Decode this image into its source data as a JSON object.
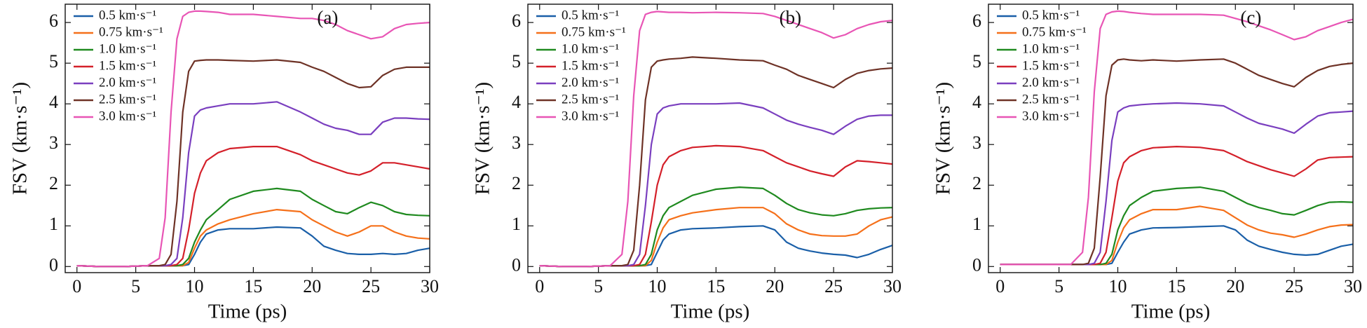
{
  "chart_data": [
    {
      "type": "line",
      "annotation": "(a)",
      "xlabel": "Time (ps)",
      "ylabel": "FSV (km·s⁻¹)",
      "xlim": [
        -1,
        30
      ],
      "ylim": [
        -0.15,
        6.45
      ],
      "xticks": [
        0,
        5,
        10,
        15,
        20,
        25,
        30
      ],
      "yticks": [
        0,
        1,
        2,
        3,
        4,
        5,
        6
      ],
      "x": [
        0,
        2,
        4,
        6,
        7,
        7.5,
        8,
        8.5,
        9,
        9.5,
        10,
        10.5,
        11,
        12,
        13,
        15,
        17,
        19,
        20,
        21,
        22,
        23,
        24,
        25,
        26,
        27,
        28,
        29,
        30
      ],
      "series": [
        {
          "name": "0.5 km·s⁻¹",
          "color": "#1a5fa8",
          "values": [
            0.02,
            0,
            0,
            0.02,
            0.02,
            0.02,
            0.02,
            0.02,
            0.02,
            0.05,
            0.3,
            0.6,
            0.8,
            0.9,
            0.93,
            0.93,
            0.97,
            0.95,
            0.75,
            0.5,
            0.4,
            0.32,
            0.3,
            0.3,
            0.32,
            0.3,
            0.32,
            0.4,
            0.45
          ]
        },
        {
          "name": "0.75 km·s⁻¹",
          "color": "#f5701a",
          "values": [
            0.02,
            0,
            0,
            0.02,
            0.02,
            0.02,
            0.02,
            0.02,
            0.02,
            0.1,
            0.45,
            0.75,
            0.9,
            1.05,
            1.15,
            1.3,
            1.4,
            1.35,
            1.15,
            1.0,
            0.85,
            0.75,
            0.85,
            1.0,
            1.0,
            0.85,
            0.75,
            0.7,
            0.68
          ]
        },
        {
          "name": "1.0 km·s⁻¹",
          "color": "#1f8a1f",
          "values": [
            0.02,
            0,
            0,
            0.02,
            0.02,
            0.02,
            0.02,
            0.02,
            0.05,
            0.2,
            0.6,
            0.9,
            1.15,
            1.4,
            1.65,
            1.85,
            1.92,
            1.85,
            1.65,
            1.5,
            1.35,
            1.3,
            1.45,
            1.58,
            1.5,
            1.35,
            1.28,
            1.26,
            1.25
          ]
        },
        {
          "name": "1.5 km·s⁻¹",
          "color": "#d4202a",
          "values": [
            0.02,
            0,
            0,
            0.02,
            0.02,
            0.02,
            0.02,
            0.05,
            0.2,
            0.9,
            1.8,
            2.3,
            2.6,
            2.8,
            2.9,
            2.95,
            2.95,
            2.75,
            2.6,
            2.5,
            2.4,
            2.3,
            2.25,
            2.35,
            2.55,
            2.55,
            2.5,
            2.45,
            2.4
          ]
        },
        {
          "name": "2.0 km·s⁻¹",
          "color": "#7a3fbf",
          "values": [
            0.02,
            0,
            0,
            0.02,
            0.02,
            0.02,
            0.05,
            0.2,
            1.2,
            2.8,
            3.7,
            3.85,
            3.9,
            3.95,
            4.0,
            4.0,
            4.05,
            3.8,
            3.65,
            3.5,
            3.4,
            3.35,
            3.25,
            3.25,
            3.55,
            3.65,
            3.65,
            3.63,
            3.62
          ]
        },
        {
          "name": "2.5 km·s⁻¹",
          "color": "#6e3226",
          "values": [
            0.02,
            0,
            0,
            0.02,
            0.02,
            0.05,
            0.3,
            1.6,
            3.8,
            4.8,
            5.05,
            5.07,
            5.08,
            5.08,
            5.07,
            5.05,
            5.08,
            5.02,
            4.9,
            4.8,
            4.65,
            4.5,
            4.4,
            4.42,
            4.7,
            4.85,
            4.9,
            4.9,
            4.9
          ]
        },
        {
          "name": "3.0 km·s⁻¹",
          "color": "#e855b5",
          "values": [
            0.02,
            0,
            0,
            0.02,
            0.2,
            1.2,
            3.8,
            5.6,
            6.15,
            6.25,
            6.28,
            6.28,
            6.27,
            6.25,
            6.2,
            6.2,
            6.15,
            6.1,
            6.1,
            6.05,
            5.95,
            5.8,
            5.7,
            5.6,
            5.65,
            5.85,
            5.95,
            5.98,
            6.0
          ]
        }
      ]
    },
    {
      "type": "line",
      "annotation": "(b)",
      "xlabel": "Time (ps)",
      "ylabel": "FSV (km·s⁻¹)",
      "xlim": [
        -1,
        30
      ],
      "ylim": [
        -0.15,
        6.45
      ],
      "xticks": [
        0,
        5,
        10,
        15,
        20,
        25,
        30
      ],
      "yticks": [
        0,
        1,
        2,
        3,
        4,
        5,
        6
      ],
      "x": [
        0,
        2,
        4,
        6,
        7,
        7.5,
        8,
        8.5,
        9,
        9.5,
        10,
        10.5,
        11,
        12,
        13,
        15,
        17,
        19,
        20,
        21,
        22,
        23,
        24,
        25,
        26,
        27,
        28,
        29,
        30
      ],
      "series": [
        {
          "name": "0.5 km·s⁻¹",
          "color": "#1a5fa8",
          "values": [
            0.02,
            0,
            0,
            0.02,
            0.02,
            0.02,
            0.02,
            0.02,
            0.02,
            0.05,
            0.35,
            0.65,
            0.8,
            0.9,
            0.93,
            0.95,
            0.98,
            1.0,
            0.9,
            0.6,
            0.45,
            0.38,
            0.33,
            0.3,
            0.28,
            0.22,
            0.3,
            0.42,
            0.52
          ]
        },
        {
          "name": "0.75 km·s⁻¹",
          "color": "#f5701a",
          "values": [
            0.02,
            0,
            0,
            0.02,
            0.02,
            0.02,
            0.02,
            0.02,
            0.02,
            0.15,
            0.6,
            0.95,
            1.15,
            1.25,
            1.32,
            1.4,
            1.45,
            1.45,
            1.3,
            1.05,
            0.9,
            0.8,
            0.76,
            0.75,
            0.75,
            0.8,
            1.0,
            1.15,
            1.22
          ]
        },
        {
          "name": "1.0 km·s⁻¹",
          "color": "#1f8a1f",
          "values": [
            0.02,
            0,
            0,
            0.02,
            0.02,
            0.02,
            0.02,
            0.02,
            0.05,
            0.3,
            0.9,
            1.25,
            1.45,
            1.6,
            1.75,
            1.9,
            1.95,
            1.92,
            1.75,
            1.55,
            1.4,
            1.32,
            1.27,
            1.25,
            1.3,
            1.38,
            1.42,
            1.44,
            1.45
          ]
        },
        {
          "name": "1.5 km·s⁻¹",
          "color": "#d4202a",
          "values": [
            0.02,
            0,
            0,
            0.02,
            0.02,
            0.02,
            0.02,
            0.05,
            0.3,
            1.1,
            2.0,
            2.5,
            2.7,
            2.85,
            2.93,
            2.97,
            2.95,
            2.85,
            2.7,
            2.55,
            2.45,
            2.35,
            2.28,
            2.22,
            2.45,
            2.6,
            2.58,
            2.55,
            2.52
          ]
        },
        {
          "name": "2.0 km·s⁻¹",
          "color": "#7a3fbf",
          "values": [
            0.02,
            0,
            0,
            0.02,
            0.02,
            0.02,
            0.05,
            0.3,
            1.5,
            3.0,
            3.75,
            3.9,
            3.95,
            4.0,
            4.0,
            4.0,
            4.02,
            3.9,
            3.75,
            3.6,
            3.5,
            3.42,
            3.35,
            3.25,
            3.45,
            3.62,
            3.7,
            3.72,
            3.72
          ]
        },
        {
          "name": "2.5 km·s⁻¹",
          "color": "#6e3226",
          "values": [
            0.02,
            0,
            0,
            0.02,
            0.02,
            0.05,
            0.4,
            2.0,
            4.1,
            4.9,
            5.05,
            5.08,
            5.1,
            5.12,
            5.15,
            5.12,
            5.08,
            5.06,
            4.95,
            4.85,
            4.7,
            4.6,
            4.5,
            4.4,
            4.6,
            4.75,
            4.82,
            4.86,
            4.88
          ]
        },
        {
          "name": "3.0 km·s⁻¹",
          "color": "#e855b5",
          "values": [
            0.02,
            0,
            0,
            0.02,
            0.3,
            1.6,
            4.2,
            5.8,
            6.2,
            6.25,
            6.27,
            6.26,
            6.25,
            6.25,
            6.24,
            6.25,
            6.24,
            6.22,
            6.15,
            6.05,
            5.95,
            5.85,
            5.75,
            5.62,
            5.7,
            5.85,
            5.95,
            6.02,
            6.05
          ]
        }
      ]
    },
    {
      "type": "line",
      "annotation": "(c)",
      "xlabel": "Time (ps)",
      "ylabel": "FSV (km·s⁻¹)",
      "xlim": [
        -1,
        30
      ],
      "ylim": [
        -0.15,
        6.45
      ],
      "xticks": [
        0,
        5,
        10,
        15,
        20,
        25,
        30
      ],
      "yticks": [
        0,
        1,
        2,
        3,
        4,
        5,
        6
      ],
      "x": [
        0,
        2,
        4,
        6,
        7,
        7.5,
        8,
        8.5,
        9,
        9.5,
        10,
        10.5,
        11,
        12,
        13,
        15,
        17,
        19,
        20,
        21,
        22,
        23,
        24,
        25,
        26,
        27,
        28,
        29,
        30
      ],
      "series": [
        {
          "name": "0.5 km·s⁻¹",
          "color": "#1a5fa8",
          "values": [
            0.05,
            0.05,
            0.05,
            0.05,
            0.05,
            0.05,
            0.05,
            0.05,
            0.05,
            0.08,
            0.35,
            0.6,
            0.8,
            0.9,
            0.95,
            0.96,
            0.98,
            1.0,
            0.9,
            0.65,
            0.5,
            0.42,
            0.35,
            0.3,
            0.28,
            0.3,
            0.4,
            0.5,
            0.55
          ]
        },
        {
          "name": "0.75 km·s⁻¹",
          "color": "#f5701a",
          "values": [
            0.05,
            0.05,
            0.05,
            0.05,
            0.05,
            0.05,
            0.05,
            0.05,
            0.05,
            0.15,
            0.6,
            0.95,
            1.15,
            1.3,
            1.4,
            1.4,
            1.48,
            1.38,
            1.2,
            1.02,
            0.9,
            0.82,
            0.78,
            0.72,
            0.8,
            0.9,
            0.98,
            1.02,
            1.03
          ]
        },
        {
          "name": "1.0 km·s⁻¹",
          "color": "#1f8a1f",
          "values": [
            0.05,
            0.05,
            0.05,
            0.05,
            0.05,
            0.05,
            0.05,
            0.05,
            0.08,
            0.3,
            0.9,
            1.25,
            1.5,
            1.7,
            1.85,
            1.92,
            1.95,
            1.85,
            1.7,
            1.55,
            1.45,
            1.38,
            1.3,
            1.27,
            1.38,
            1.5,
            1.58,
            1.59,
            1.58
          ]
        },
        {
          "name": "1.5 km·s⁻¹",
          "color": "#d4202a",
          "values": [
            0.05,
            0.05,
            0.05,
            0.05,
            0.05,
            0.05,
            0.05,
            0.08,
            0.35,
            1.2,
            2.1,
            2.55,
            2.7,
            2.85,
            2.92,
            2.95,
            2.93,
            2.85,
            2.72,
            2.58,
            2.48,
            2.38,
            2.3,
            2.22,
            2.4,
            2.62,
            2.68,
            2.69,
            2.7
          ]
        },
        {
          "name": "2.0 km·s⁻¹",
          "color": "#7a3fbf",
          "values": [
            0.05,
            0.05,
            0.05,
            0.05,
            0.05,
            0.05,
            0.08,
            0.35,
            1.6,
            3.1,
            3.8,
            3.9,
            3.95,
            3.98,
            4.0,
            4.02,
            4.0,
            3.95,
            3.8,
            3.65,
            3.52,
            3.45,
            3.38,
            3.28,
            3.5,
            3.7,
            3.78,
            3.8,
            3.82
          ]
        },
        {
          "name": "2.5 km·s⁻¹",
          "color": "#6e3226",
          "values": [
            0.05,
            0.05,
            0.05,
            0.05,
            0.05,
            0.08,
            0.45,
            2.2,
            4.2,
            4.95,
            5.08,
            5.1,
            5.08,
            5.06,
            5.08,
            5.05,
            5.08,
            5.1,
            5.0,
            4.85,
            4.7,
            4.6,
            4.5,
            4.42,
            4.65,
            4.82,
            4.92,
            4.97,
            5.0
          ]
        },
        {
          "name": "3.0 km·s⁻¹",
          "color": "#e855b5",
          "values": [
            0.05,
            0.05,
            0.05,
            0.05,
            0.35,
            1.7,
            4.3,
            5.85,
            6.2,
            6.26,
            6.28,
            6.27,
            6.25,
            6.22,
            6.2,
            6.2,
            6.2,
            6.18,
            6.1,
            6.02,
            5.92,
            5.82,
            5.7,
            5.58,
            5.65,
            5.8,
            5.9,
            6.0,
            6.08
          ]
        }
      ]
    }
  ]
}
